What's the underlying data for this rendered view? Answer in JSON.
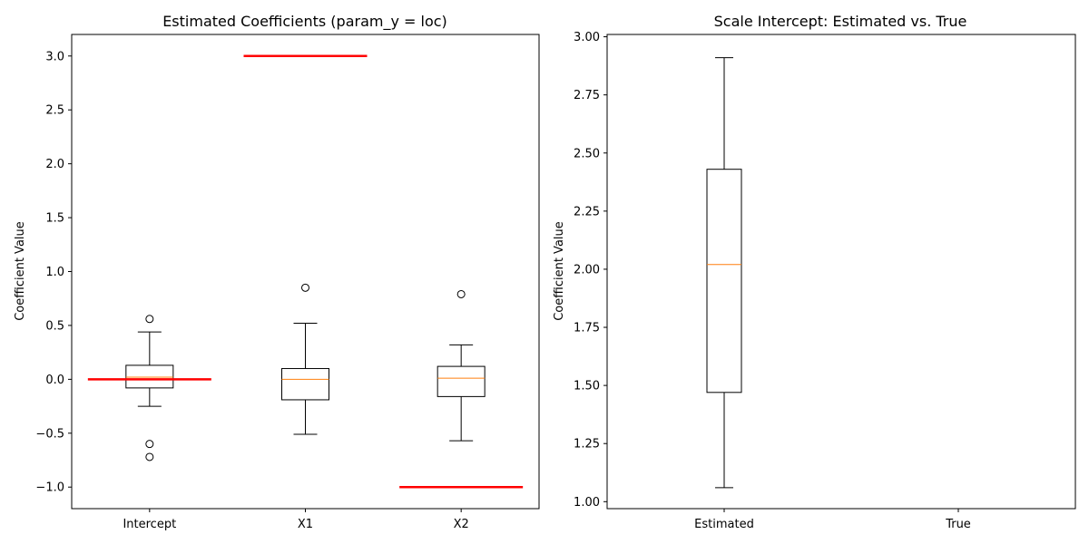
{
  "chart_data": [
    {
      "type": "box",
      "title": "Estimated Coefficients (param_y = loc)",
      "xlabel": "",
      "ylabel": "Coefficient Value",
      "categories": [
        "Intercept",
        "X1",
        "X2"
      ],
      "ylim": [
        -1.2,
        3.2
      ],
      "yticks": [
        -1.0,
        -0.5,
        0.0,
        0.5,
        1.0,
        1.5,
        2.0,
        2.5,
        3.0
      ],
      "ytick_labels": [
        "−1.0",
        "−0.5",
        "0.0",
        "0.5",
        "1.0",
        "1.5",
        "2.0",
        "2.5",
        "3.0"
      ],
      "grid": false,
      "boxes": [
        {
          "category": "Intercept",
          "whisker_low": -0.25,
          "q1": -0.08,
          "median": 0.02,
          "q3": 0.13,
          "whisker_high": 0.44,
          "outliers": [
            0.56,
            -0.6,
            -0.72
          ]
        },
        {
          "category": "X1",
          "whisker_low": -0.51,
          "q1": -0.19,
          "median": 0.0,
          "q3": 0.1,
          "whisker_high": 0.52,
          "outliers": [
            0.85
          ]
        },
        {
          "category": "X2",
          "whisker_low": -0.57,
          "q1": -0.16,
          "median": 0.01,
          "q3": 0.12,
          "whisker_high": 0.32,
          "outliers": [
            0.79
          ]
        }
      ],
      "true_values": [
        {
          "category": "Intercept",
          "value": 0.0
        },
        {
          "category": "X1",
          "value": 3.0
        },
        {
          "category": "X2",
          "value": -1.0
        }
      ],
      "colors": {
        "box": "#000000",
        "median": "#ff7f0e",
        "true_line": "#ff0000"
      }
    },
    {
      "type": "box",
      "title": "Scale Intercept: Estimated vs. True",
      "xlabel": "",
      "ylabel": "Coefficient Value",
      "categories": [
        "Estimated",
        "True"
      ],
      "ylim": [
        0.97,
        3.01
      ],
      "yticks": [
        1.0,
        1.25,
        1.5,
        1.75,
        2.0,
        2.25,
        2.5,
        2.75,
        3.0
      ],
      "ytick_labels": [
        "1.00",
        "1.25",
        "1.50",
        "1.75",
        "2.00",
        "2.25",
        "2.50",
        "2.75",
        "3.00"
      ],
      "grid": false,
      "boxes": [
        {
          "category": "Estimated",
          "whisker_low": 1.06,
          "q1": 1.47,
          "median": 2.02,
          "q3": 2.43,
          "whisker_high": 2.91,
          "outliers": []
        }
      ],
      "true_values": [],
      "colors": {
        "box": "#000000",
        "median": "#ff7f0e",
        "true_line": "#ff0000"
      }
    }
  ]
}
